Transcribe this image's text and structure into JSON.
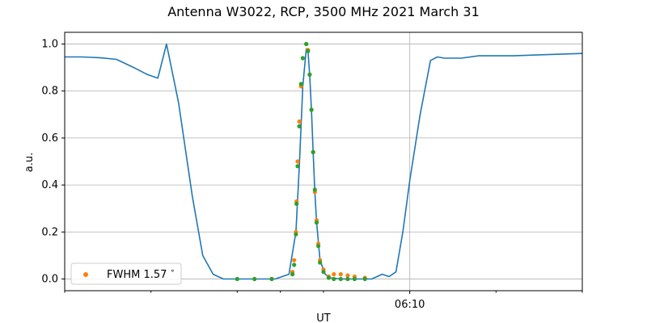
{
  "chart_data": {
    "type": "line",
    "title": "Antenna W3022, RCP, 3500 MHz 2021 March 31",
    "xlabel": "UT",
    "ylabel": "a.u.",
    "x_unit": "minutes",
    "xlim": [
      -10,
      5
    ],
    "ylim": [
      -0.05,
      1.05
    ],
    "x_ticks": [
      {
        "x": -10,
        "label": ""
      },
      {
        "x": -7.5,
        "label": ""
      },
      {
        "x": -5,
        "label": ""
      },
      {
        "x": -3.75,
        "label": ""
      },
      {
        "x": -2.5,
        "label": ""
      },
      {
        "x": 0,
        "label": "06:10"
      },
      {
        "x": 2.5,
        "label": ""
      },
      {
        "x": 5,
        "label": ""
      }
    ],
    "y_ticks": [
      0.0,
      0.2,
      0.4,
      0.6,
      0.8,
      1.0
    ],
    "y_tick_labels": [
      "0.0",
      "0.2",
      "0.4",
      "0.6",
      "0.8",
      "1.0"
    ],
    "grid": true,
    "legend": {
      "position": "lower-left",
      "entries": [
        "FWHM 1.57$^\\circ$"
      ]
    },
    "legend_label": "FWHM 1.57",
    "legend_degree": "∘",
    "colors": {
      "line": "#1f77b4",
      "orange": "#ff7f0e",
      "green": "#2ca02c",
      "grid": "#b0b0b0"
    },
    "series": [
      {
        "kind": "line",
        "color": "#1f77b4",
        "x": [
          -10,
          -9.5,
          -9,
          -8.5,
          -8,
          -7.6,
          -7.3,
          -7.05,
          -6.7,
          -6.3,
          -6,
          -5.7,
          -5.4,
          -5.1,
          -4.8,
          -4.5,
          -4.2,
          -3.9,
          -3.5,
          -3.3,
          -3.2,
          -3.1,
          -3.0,
          -2.95,
          -2.9,
          -2.85,
          -2.8,
          -2.75,
          -2.7,
          -2.6,
          -2.45,
          -2.3,
          -2,
          -1.5,
          -1.1,
          -0.8,
          -0.6,
          -0.4,
          -0.2,
          0,
          0.3,
          0.6,
          0.8,
          1.0,
          1.5,
          2,
          3,
          4,
          5
        ],
        "y": [
          0.945,
          0.945,
          0.942,
          0.935,
          0.9,
          0.87,
          0.855,
          1.0,
          0.75,
          0.35,
          0.1,
          0.02,
          0.0,
          0.0,
          0.0,
          0.0,
          0.0,
          0.0,
          0.02,
          0.2,
          0.48,
          0.82,
          0.98,
          0.97,
          0.87,
          0.72,
          0.54,
          0.37,
          0.24,
          0.08,
          0.02,
          0.005,
          0.0,
          0.0,
          0.0,
          0.02,
          0.01,
          0.03,
          0.2,
          0.42,
          0.7,
          0.93,
          0.945,
          0.94,
          0.94,
          0.95,
          0.95,
          0.955,
          0.96
        ]
      },
      {
        "kind": "scatter",
        "name": "FWHM 1.57",
        "color": "#ff7f0e",
        "x": [
          -3.1,
          -3.15,
          -3.2,
          -3.25,
          -3.28,
          -3.3,
          -3.35,
          -3.4,
          -3.0,
          -2.95,
          -2.9,
          -2.85,
          -2.8,
          -2.75,
          -2.7,
          -2.65,
          -2.6,
          -2.5,
          -2.35,
          -2.2,
          -2.0,
          -1.8,
          -1.6,
          -1.3,
          -4.0,
          -4.5
        ],
        "y": [
          0.94,
          0.82,
          0.67,
          0.5,
          0.33,
          0.2,
          0.08,
          0.03,
          1.0,
          0.975,
          0.87,
          0.72,
          0.54,
          0.37,
          0.25,
          0.15,
          0.08,
          0.04,
          0.01,
          0.02,
          0.02,
          0.015,
          0.01,
          0.005,
          0.0,
          0.0
        ]
      },
      {
        "kind": "scatter",
        "color": "#2ca02c",
        "x": [
          -3.1,
          -3.15,
          -3.2,
          -3.25,
          -3.28,
          -3.3,
          -3.35,
          -3.4,
          -3.0,
          -2.95,
          -2.9,
          -2.85,
          -2.8,
          -2.75,
          -2.7,
          -2.65,
          -2.6,
          -2.5,
          -2.35,
          -2.2,
          -2.0,
          -1.8,
          -1.6,
          -1.3,
          -4.0,
          -4.5,
          -5.0
        ],
        "y": [
          0.94,
          0.83,
          0.65,
          0.48,
          0.32,
          0.19,
          0.06,
          0.02,
          1.0,
          0.97,
          0.87,
          0.72,
          0.54,
          0.38,
          0.24,
          0.14,
          0.07,
          0.03,
          0.005,
          0.0,
          0.0,
          0.0,
          0.0,
          0.0,
          0.0,
          0.0,
          0.0
        ]
      }
    ]
  }
}
